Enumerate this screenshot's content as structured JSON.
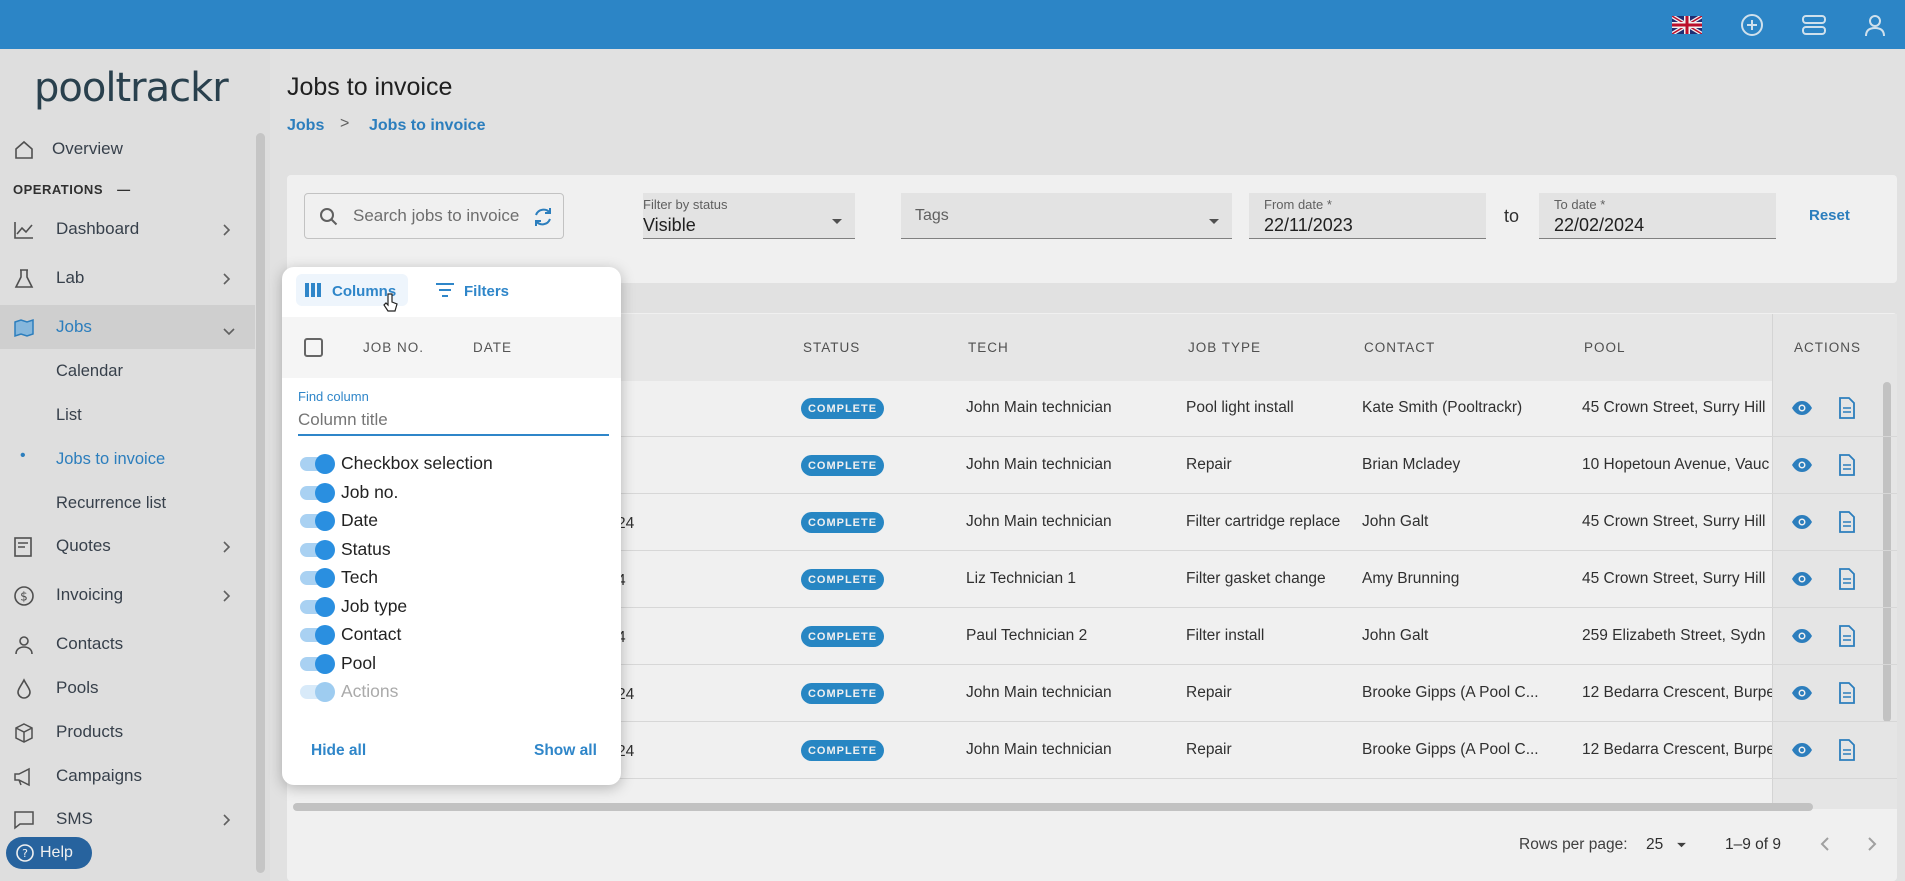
{
  "topbar": {
    "icons": [
      "uk-flag-icon",
      "add-icon",
      "dashboard-toggle-icon",
      "account-icon"
    ]
  },
  "sidebar": {
    "logo": "pooltrackr",
    "overview": "Overview",
    "section": "OPERATIONS",
    "section_toggle": "—",
    "items": [
      {
        "label": "Dashboard"
      },
      {
        "label": "Lab"
      },
      {
        "label": "Jobs"
      },
      {
        "label": "Quotes"
      },
      {
        "label": "Invoicing"
      },
      {
        "label": "Contacts"
      },
      {
        "label": "Pools"
      },
      {
        "label": "Products"
      },
      {
        "label": "Campaigns"
      },
      {
        "label": "SMS"
      }
    ],
    "jobs_sub": [
      "Calendar",
      "List",
      "Jobs to invoice",
      "Recurrence list"
    ],
    "active_sub_bullet": "•",
    "help": "Help"
  },
  "page": {
    "title": "Jobs to invoice",
    "breadcrumb": [
      "Jobs",
      "Jobs to invoice"
    ],
    "breadcrumb_sep": ">"
  },
  "filters": {
    "search_placeholder": "Search jobs to invoice",
    "status_label": "Filter by status",
    "status_value": "Visible",
    "tags_placeholder": "Tags",
    "from_label": "From date *",
    "from_value": "22/11/2023",
    "to_word": "to",
    "to_label": "To date *",
    "to_value": "22/02/2024",
    "reset": "Reset"
  },
  "table": {
    "headers": {
      "status": "STATUS",
      "tech": "TECH",
      "job_type": "JOB TYPE",
      "contact": "CONTACT",
      "pool": "POOL",
      "actions": "ACTIONS"
    },
    "rows": [
      {
        "date_frag": "",
        "status": "COMPLETE",
        "tech": "John Main technician",
        "job_type": "Pool light install",
        "contact": "Kate Smith (Pooltrackr)",
        "pool": "45 Crown Street, Surry Hill"
      },
      {
        "date_frag": "",
        "status": "COMPLETE",
        "tech": "John Main technician",
        "job_type": "Repair",
        "contact": "Brian Mcladey",
        "pool": "10 Hopetoun Avenue, Vauc"
      },
      {
        "date_frag": "24",
        "status": "COMPLETE",
        "tech": "John Main technician",
        "job_type": "Filter cartridge replace",
        "contact": "John Galt",
        "pool": "45 Crown Street, Surry Hill"
      },
      {
        "date_frag": "4",
        "status": "COMPLETE",
        "tech": "Liz Technician 1",
        "job_type": "Filter gasket change",
        "contact": "Amy Brunning",
        "pool": "45 Crown Street, Surry Hill"
      },
      {
        "date_frag": "4",
        "status": "COMPLETE",
        "tech": "Paul Technician 2",
        "job_type": "Filter install",
        "contact": "John Galt",
        "pool": "259 Elizabeth Street, Sydn"
      },
      {
        "date_frag": "24",
        "status": "COMPLETE",
        "tech": "John Main technician",
        "job_type": "Repair",
        "contact": "Brooke Gipps (A Pool C...",
        "pool": "12 Bedarra Crescent, Burpe"
      },
      {
        "date_frag": "24",
        "status": "COMPLETE",
        "tech": "John Main technician",
        "job_type": "Repair",
        "contact": "Brooke Gipps (A Pool C...",
        "pool": "12 Bedarra Crescent, Burpe"
      }
    ],
    "footer": {
      "rows_per_page_label": "Rows per page:",
      "rows_per_page": "25",
      "range": "1–9 of 9"
    }
  },
  "columns_panel": {
    "tab_columns": "Columns",
    "tab_filters": "Filters",
    "header_cols": [
      "JOB NO.",
      "DATE"
    ],
    "find_label": "Find column",
    "find_placeholder": "Column title",
    "columns": [
      {
        "label": "Checkbox selection",
        "on": true
      },
      {
        "label": "Job no.",
        "on": true
      },
      {
        "label": "Date",
        "on": true
      },
      {
        "label": "Status",
        "on": true
      },
      {
        "label": "Tech",
        "on": true
      },
      {
        "label": "Job type",
        "on": true
      },
      {
        "label": "Contact",
        "on": true
      },
      {
        "label": "Pool",
        "on": true
      },
      {
        "label": "Actions",
        "on": true,
        "disabled": true
      }
    ],
    "hide_all": "Hide all",
    "show_all": "Show all"
  },
  "colors": {
    "topbar": "#2f8ed3",
    "accent": "#2f86c9",
    "badge": "#2a8fd0",
    "help": "#2a6aa8"
  }
}
